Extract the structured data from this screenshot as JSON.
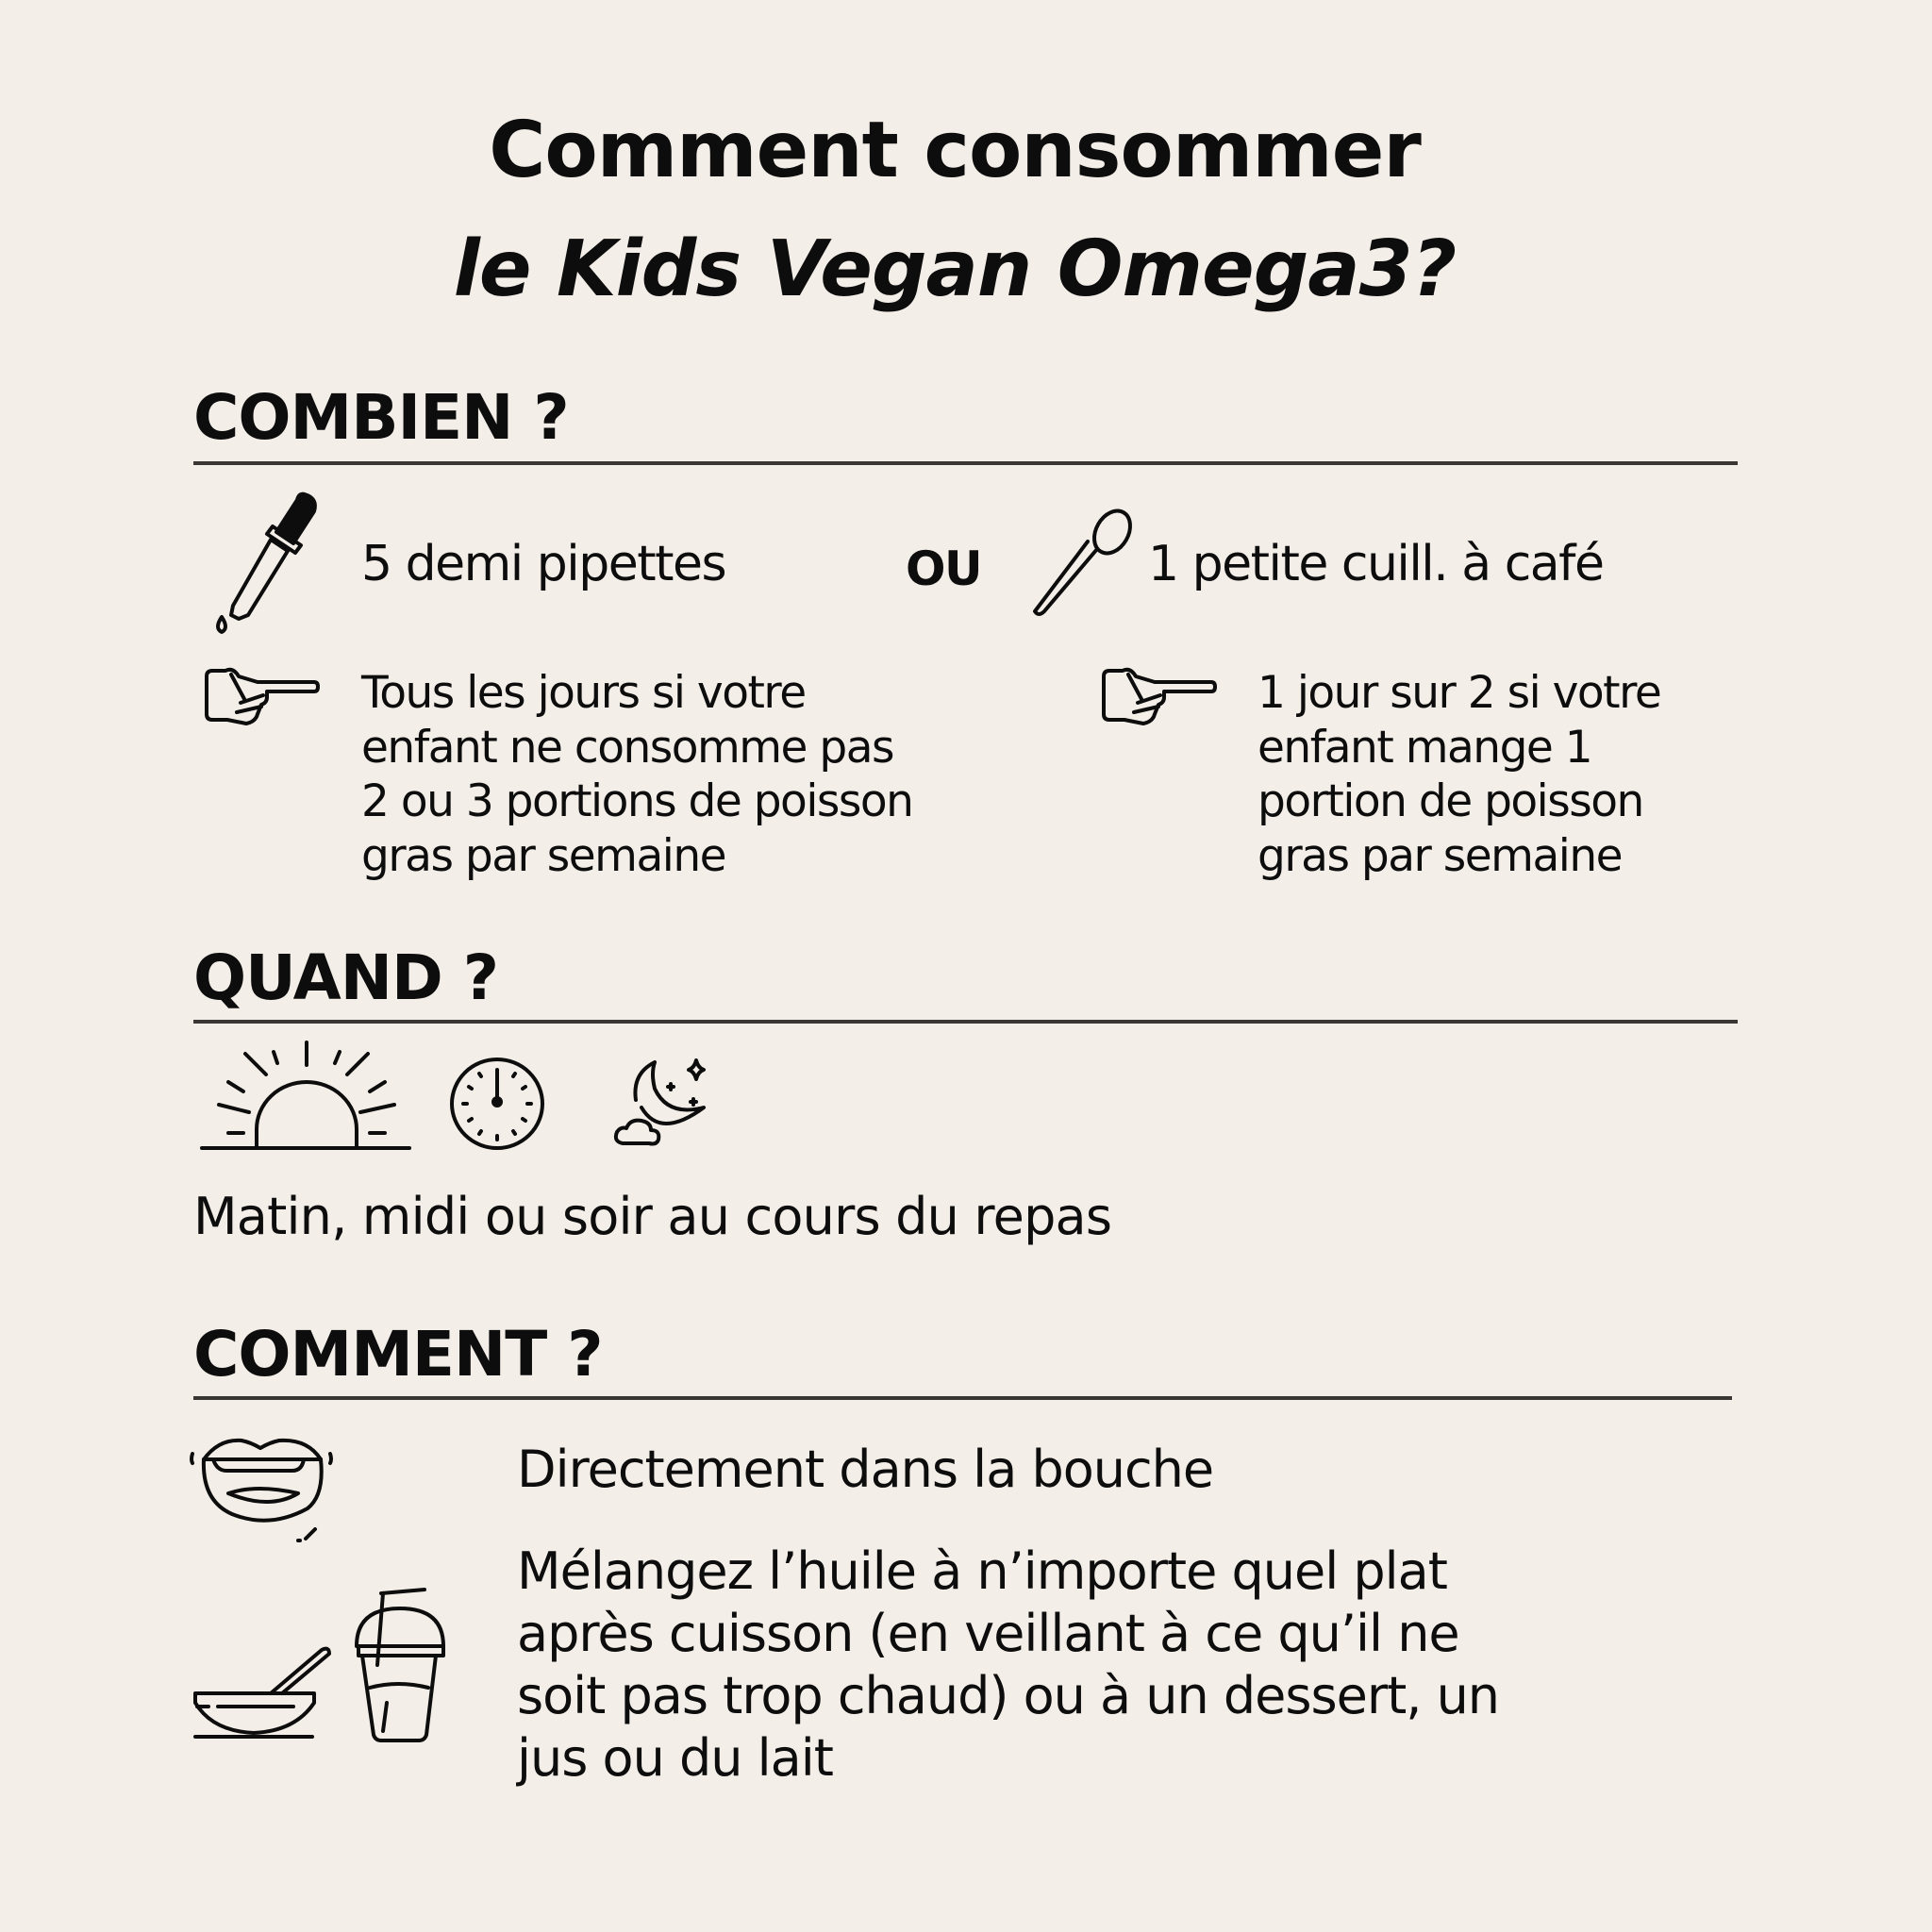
{
  "title": {
    "line1": "Comment consommer",
    "line2": "le Kids Vegan Omega3?"
  },
  "combien": {
    "heading": "COMBIEN ?",
    "option1": "5 demi pipettes",
    "or": "OU",
    "option2": "1 petite cuill. à café",
    "left_note": [
      "Tous les jours si votre",
      "enfant ne consomme pas",
      "2 ou 3 portions de poisson",
      "gras par semaine"
    ],
    "right_note": [
      "1 jour sur 2 si votre",
      "enfant mange 1",
      "portion de poisson",
      "gras par semaine"
    ]
  },
  "quand": {
    "heading": "QUAND ?",
    "text": "Matin, midi ou soir au cours du repas"
  },
  "comment": {
    "heading": "COMMENT ?",
    "text1": "Directement dans la bouche",
    "text2": [
      "Mélangez l’huile à n’importe quel plat",
      "après cuisson (en veillant à ce qu’il ne",
      "soit pas trop chaud) ou à un dessert, un",
      "jus ou du lait"
    ]
  },
  "icons": [
    "pipette-icon",
    "spoon-icon",
    "pointing-hand-icon",
    "sunrise-icon",
    "clock-icon",
    "moon-cloud-icon",
    "mouth-icon",
    "bowl-icon",
    "cup-straw-icon"
  ],
  "colors": {
    "background": "#f4eee8",
    "text": "#0d0d0d",
    "rule": "#3a3633"
  }
}
